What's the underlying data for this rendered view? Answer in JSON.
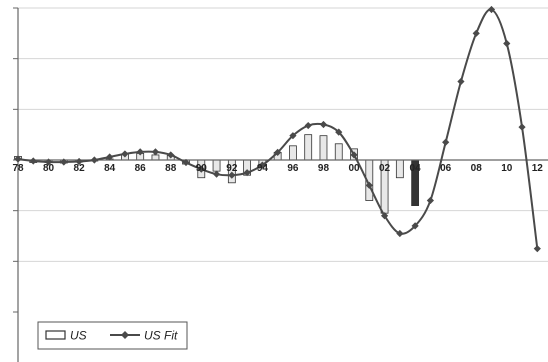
{
  "chart_data": {
    "type": "bar",
    "title": "",
    "xlabel": "",
    "ylabel": "",
    "x_tick_labels": [
      "78",
      "80",
      "82",
      "84",
      "86",
      "88",
      "90",
      "92",
      "94",
      "96",
      "98",
      "00",
      "02",
      "04",
      "06",
      "08",
      "10",
      "12"
    ],
    "x_tick_years": [
      1978,
      1980,
      1982,
      1984,
      1986,
      1988,
      1990,
      1992,
      1994,
      1996,
      1998,
      2000,
      2002,
      2004,
      2006,
      2008,
      2010,
      2012
    ],
    "xlim": [
      1978,
      2012.7
    ],
    "ylim": [
      -3,
      3
    ],
    "grid": true,
    "legend": "bottom-left",
    "legend_labels": [
      "US",
      "US Fit"
    ],
    "series": [
      {
        "name": "US",
        "kind": "bar",
        "x": [
          1978,
          1979,
          1980,
          1981,
          1982,
          1983,
          1984,
          1985,
          1986,
          1987,
          1988,
          1989,
          1990,
          1991,
          1992,
          1993,
          1994,
          1995,
          1996,
          1997,
          1998,
          1999,
          2000,
          2001,
          2002,
          2003,
          2004
        ],
        "values": [
          0.07,
          -0.05,
          -0.05,
          -0.06,
          -0.04,
          -0.02,
          0.02,
          0.12,
          0.13,
          0.1,
          0.09,
          -0.08,
          -0.35,
          -0.22,
          -0.45,
          -0.3,
          -0.12,
          0.15,
          0.28,
          0.5,
          0.48,
          0.32,
          0.22,
          -0.8,
          -1.05,
          -0.35,
          -0.9
        ],
        "highlight_index": 26,
        "color": "#e8e8e8",
        "highlight_color": "#333333"
      },
      {
        "name": "US Fit",
        "kind": "line",
        "x": [
          1978,
          1979,
          1980,
          1981,
          1982,
          1983,
          1984,
          1985,
          1986,
          1987,
          1988,
          1989,
          1990,
          1991,
          1992,
          1993,
          1994,
          1995,
          1996,
          1997,
          1998,
          1999,
          2000,
          2001,
          2002,
          2003,
          2004,
          2005,
          2006,
          2007,
          2008,
          2009,
          2010,
          2011,
          2012
        ],
        "values": [
          0.02,
          -0.02,
          -0.04,
          -0.04,
          -0.03,
          0.0,
          0.06,
          0.12,
          0.16,
          0.16,
          0.1,
          -0.05,
          -0.18,
          -0.28,
          -0.3,
          -0.25,
          -0.1,
          0.15,
          0.48,
          0.68,
          0.7,
          0.55,
          0.1,
          -0.5,
          -1.1,
          -1.45,
          -1.3,
          -0.8,
          0.35,
          1.55,
          2.5,
          2.97,
          2.3,
          0.65,
          -1.75
        ],
        "color": "#4a4a4a"
      }
    ],
    "colors": {
      "line": "#4a4a4a",
      "bar_fill": "#e8e8e8",
      "bar_highlight": "#333333",
      "grid": "#d6d6d6",
      "axis": "#666666"
    }
  }
}
